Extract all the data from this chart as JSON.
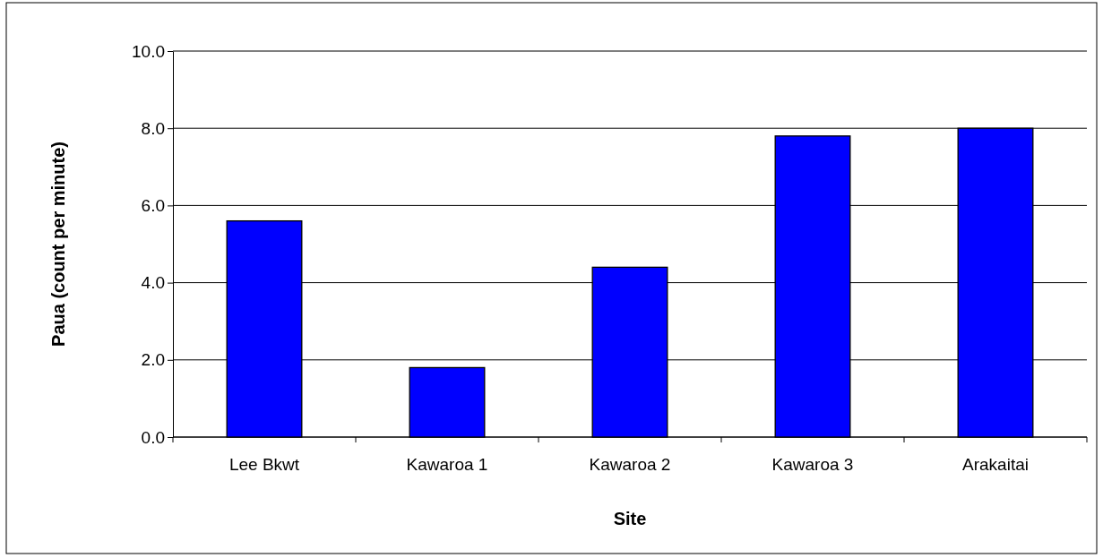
{
  "chart_data": {
    "type": "bar",
    "xlabel": "Site",
    "ylabel": "Paua (count per minute)",
    "categories": [
      "Lee Bkwt",
      "Kawaroa 1",
      "Kawaroa 2",
      "Kawaroa 3",
      "Arakaitai"
    ],
    "values": [
      5.6,
      1.8,
      4.4,
      7.8,
      8.0
    ],
    "color": "#0000ff",
    "ylim": [
      0,
      10
    ],
    "yticks": [
      {
        "value": 0,
        "label": "0.0"
      },
      {
        "value": 2,
        "label": "2.0"
      },
      {
        "value": 4,
        "label": "4.0"
      },
      {
        "value": 6,
        "label": "6.0"
      },
      {
        "value": 8,
        "label": "8.0"
      },
      {
        "value": 10,
        "label": "10.0"
      }
    ],
    "grid": "y"
  }
}
